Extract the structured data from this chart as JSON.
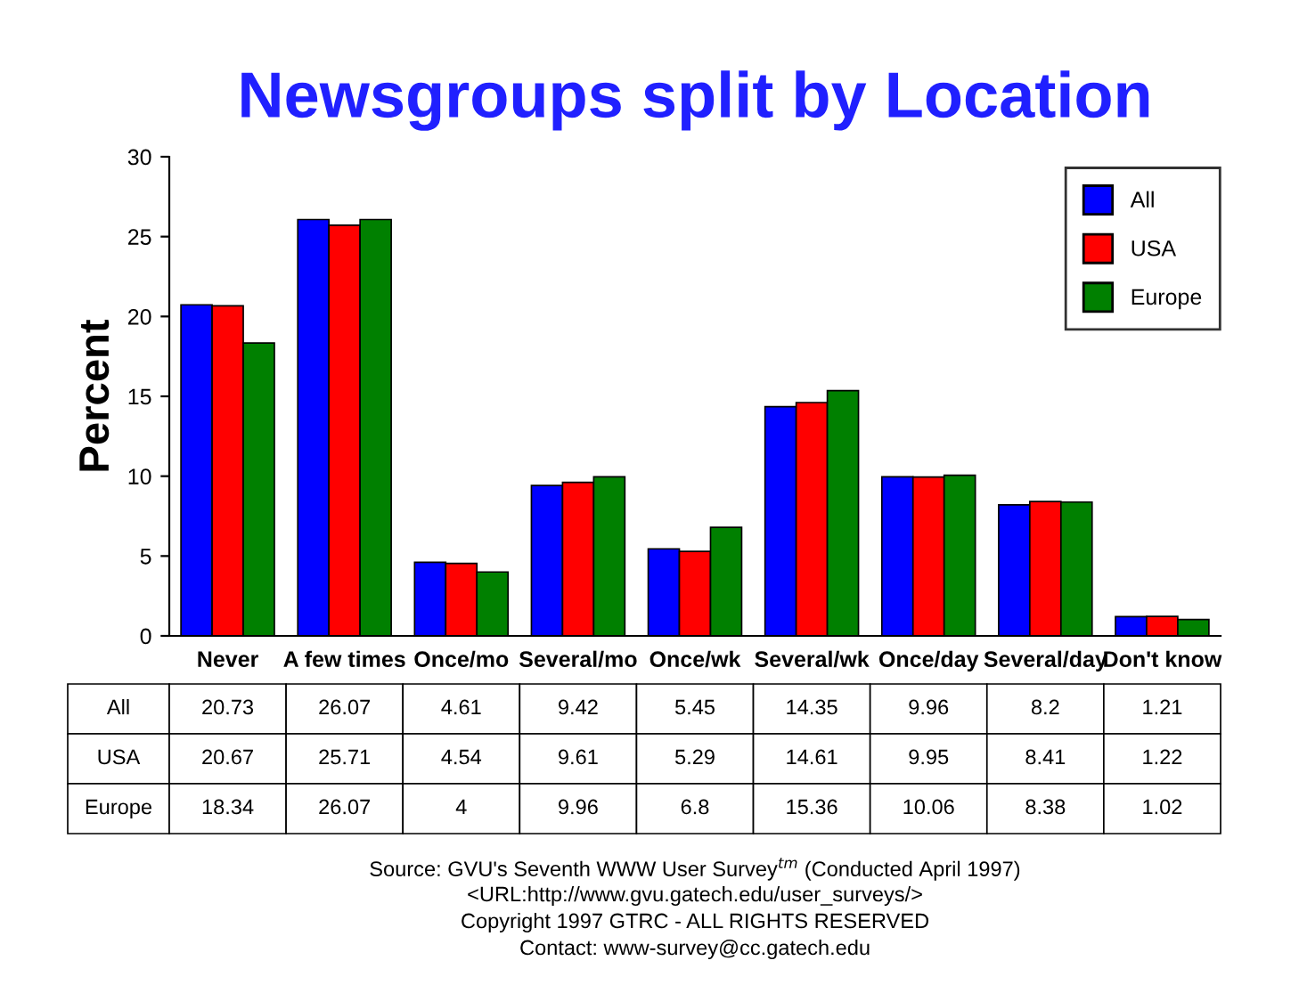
{
  "chart_data": {
    "type": "bar",
    "title": "Newsgroups split by Location",
    "ylabel": "Percent",
    "categories": [
      "Never",
      "A few times",
      "Once/mo",
      "Several/mo",
      "Once/wk",
      "Several/wk",
      "Once/day",
      "Several/day",
      "Don't know"
    ],
    "series": [
      {
        "name": "All",
        "color": "#0000ff",
        "values": [
          20.73,
          26.07,
          4.61,
          9.42,
          5.45,
          14.35,
          9.96,
          8.2,
          1.21
        ]
      },
      {
        "name": "USA",
        "color": "#ff0000",
        "values": [
          20.67,
          25.71,
          4.54,
          9.61,
          5.29,
          14.61,
          9.95,
          8.41,
          1.22
        ]
      },
      {
        "name": "Europe",
        "color": "#008000",
        "values": [
          18.34,
          26.07,
          4,
          9.96,
          6.8,
          15.36,
          10.06,
          8.38,
          1.02
        ]
      }
    ],
    "ylim": [
      0,
      30
    ],
    "yticks": [
      0,
      5,
      10,
      15,
      20,
      25,
      30
    ],
    "grid": false,
    "legend": "top right",
    "data_labels": true,
    "annotations": [
      "Source: GVU's Seventh WWW User Survey$^{tm}$ (Conducted April 1997)",
      "<URL:http://www.gvu.gatech.edu/user_surveys/>",
      "Copyright 1997 GTRC - ALL RIGHTS RESERVED",
      "Contact: www-survey@cc.gatech.edu"
    ]
  }
}
